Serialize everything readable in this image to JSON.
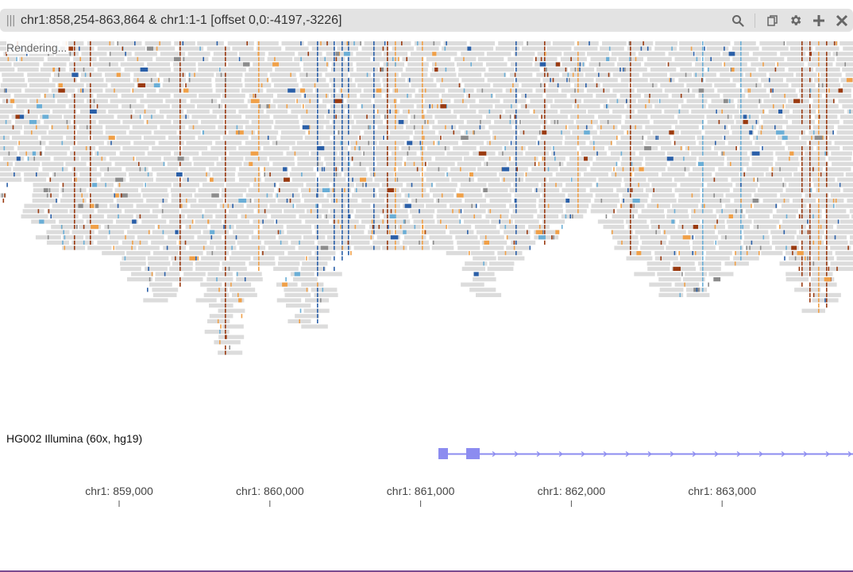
{
  "view": {
    "title": "chr1:858,254-863,864 & chr1:1-1 [offset 0,0:-4197,-3226]",
    "status": "Rendering...",
    "track_label": "HG002 Illumina (60x, hg19)"
  },
  "toolbar": {
    "icons": [
      "search-icon",
      "copy-icon",
      "gear-icon",
      "plus-icon",
      "close-icon"
    ]
  },
  "axis": {
    "ticks": [
      {
        "label": "chr1: 859,000",
        "pos": 859000
      },
      {
        "label": "chr1: 860,000",
        "pos": 860000
      },
      {
        "label": "chr1: 861,000",
        "pos": 861000
      },
      {
        "label": "chr1: 862,000",
        "pos": 862000
      },
      {
        "label": "chr1: 863,000",
        "pos": 863000
      }
    ]
  },
  "colors": {
    "read": "#dcdcdc",
    "mismatch_orange": "#f0a048",
    "mismatch_brown": "#9a3a10",
    "mismatch_blue": "#2a5fa8",
    "mismatch_lightblue": "#6aaed6",
    "mismatch_gray": "#8c8c8c",
    "gene": "#8c8cf0",
    "titlebar": "#e3e3e3"
  }
}
